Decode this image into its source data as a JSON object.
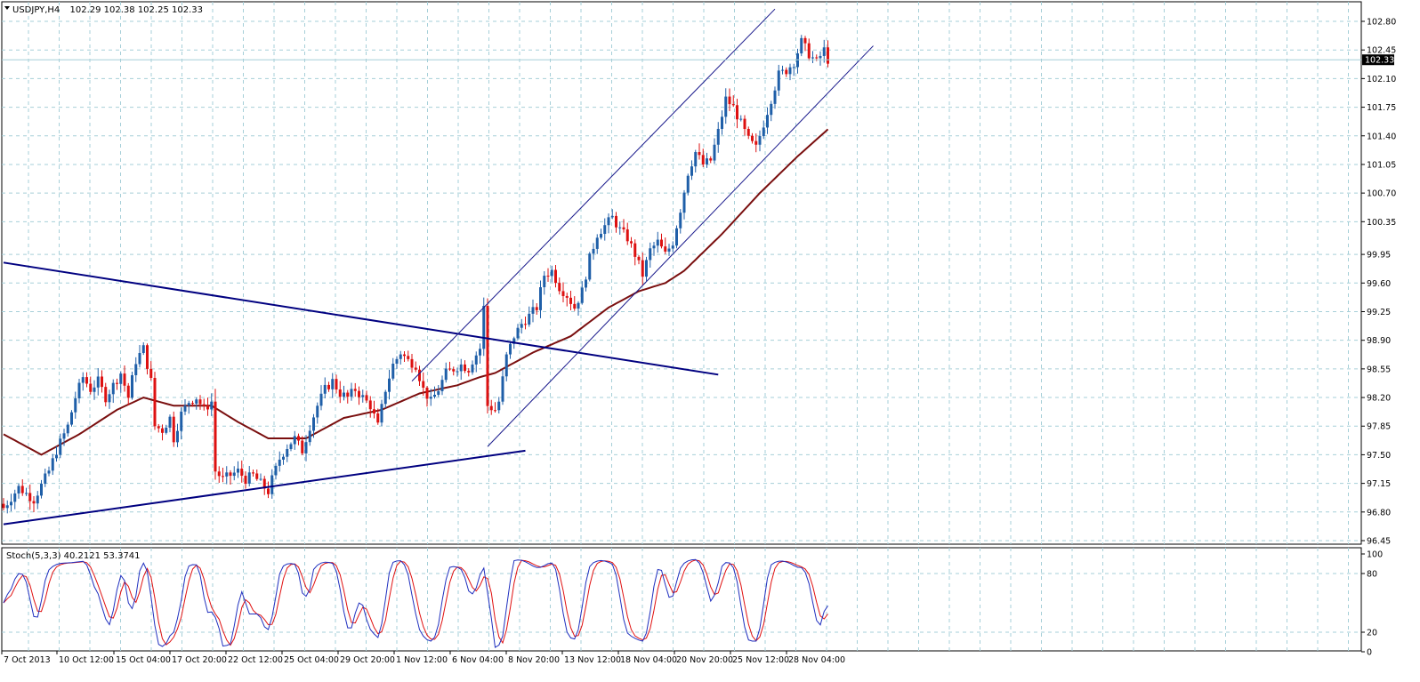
{
  "header": {
    "symbol": "USDJPY,H4",
    "ohlc": "102.29 102.38 102.25 102.33"
  },
  "colors": {
    "bull": "#1f5fa8",
    "bear": "#dd1111",
    "ma": "#7a0f0f",
    "trendline": "#000080",
    "channel": "#1a1a8c",
    "grid": "#a6cfd8",
    "stoch_main": "#1f2fbf",
    "stoch_signal": "#e01010",
    "price_marker_bg": "#000000"
  },
  "chart_data": [
    {
      "type": "candlestick",
      "title": "USDJPY,H4",
      "x_tick_labels": [
        "7 Oct 2013",
        "10 Oct 12:00",
        "15 Oct 04:00",
        "17 Oct 20:00",
        "22 Oct 12:00",
        "25 Oct 04:00",
        "29 Oct 20:00",
        "1 Nov 12:00",
        "6 Nov 04:00",
        "8 Nov 20:00",
        "13 Nov 12:00",
        "18 Nov 04:00",
        "20 Nov 20:00",
        "25 Nov 12:00",
        "28 Nov 04:00"
      ],
      "y_tick_labels": [
        "102.80",
        "102.45",
        "102.10",
        "101.75",
        "101.40",
        "101.05",
        "100.70",
        "100.35",
        "99.95",
        "99.60",
        "99.25",
        "98.90",
        "98.55",
        "98.20",
        "97.85",
        "97.50",
        "97.15",
        "96.80",
        "96.45"
      ],
      "ylim": [
        96.4,
        102.95
      ],
      "last_price": "102.33",
      "last_price_value": 102.33,
      "grid": true,
      "path": [
        [
          0,
          96.85
        ],
        [
          4,
          97.1
        ],
        [
          8,
          96.95
        ],
        [
          12,
          97.3
        ],
        [
          14,
          97.55
        ],
        [
          17,
          97.85
        ],
        [
          19,
          98.2
        ],
        [
          21,
          98.45
        ],
        [
          23,
          98.3
        ],
        [
          25,
          98.4
        ],
        [
          27,
          98.2
        ],
        [
          29,
          98.35
        ],
        [
          31,
          98.5
        ],
        [
          33,
          98.2
        ],
        [
          35,
          98.65
        ],
        [
          37,
          98.8
        ],
        [
          39,
          98.4
        ],
        [
          40,
          97.85
        ],
        [
          42,
          97.8
        ],
        [
          44,
          97.95
        ],
        [
          45,
          97.7
        ],
        [
          47,
          98.0
        ],
        [
          49,
          98.15
        ],
        [
          51,
          98.2
        ],
        [
          53,
          98.05
        ],
        [
          55,
          98.15
        ],
        [
          56,
          97.3
        ],
        [
          58,
          97.2
        ],
        [
          60,
          97.25
        ],
        [
          62,
          97.3
        ],
        [
          64,
          97.2
        ],
        [
          66,
          97.25
        ],
        [
          68,
          97.15
        ],
        [
          70,
          97.05
        ],
        [
          71,
          97.2
        ],
        [
          73,
          97.45
        ],
        [
          75,
          97.6
        ],
        [
          77,
          97.7
        ],
        [
          79,
          97.55
        ],
        [
          81,
          97.85
        ],
        [
          83,
          98.1
        ],
        [
          85,
          98.3
        ],
        [
          87,
          98.4
        ],
        [
          89,
          98.25
        ],
        [
          91,
          98.2
        ],
        [
          93,
          98.3
        ],
        [
          95,
          98.2
        ],
        [
          97,
          98.1
        ],
        [
          99,
          97.85
        ],
        [
          101,
          98.3
        ],
        [
          103,
          98.6
        ],
        [
          105,
          98.75
        ],
        [
          107,
          98.65
        ],
        [
          109,
          98.6
        ],
        [
          111,
          98.3
        ],
        [
          113,
          98.15
        ],
        [
          115,
          98.3
        ],
        [
          117,
          98.5
        ],
        [
          119,
          98.55
        ],
        [
          121,
          98.6
        ],
        [
          123,
          98.55
        ],
        [
          124,
          98.65
        ],
        [
          126,
          98.8
        ],
        [
          127,
          99.3
        ],
        [
          128,
          98.1
        ],
        [
          130,
          98.05
        ],
        [
          131,
          98.15
        ],
        [
          133,
          98.7
        ],
        [
          135,
          98.95
        ],
        [
          137,
          99.1
        ],
        [
          139,
          99.2
        ],
        [
          141,
          99.3
        ],
        [
          143,
          99.7
        ],
        [
          145,
          99.75
        ],
        [
          147,
          99.55
        ],
        [
          149,
          99.45
        ],
        [
          151,
          99.3
        ],
        [
          153,
          99.5
        ],
        [
          155,
          99.9
        ],
        [
          157,
          100.2
        ],
        [
          159,
          100.3
        ],
        [
          161,
          100.4
        ],
        [
          163,
          100.25
        ],
        [
          165,
          100.15
        ],
        [
          167,
          99.95
        ],
        [
          169,
          99.7
        ],
        [
          171,
          100.0
        ],
        [
          173,
          100.1
        ],
        [
          175,
          99.95
        ],
        [
          177,
          100.1
        ],
        [
          179,
          100.5
        ],
        [
          181,
          100.95
        ],
        [
          183,
          101.2
        ],
        [
          185,
          101.05
        ],
        [
          187,
          101.1
        ],
        [
          189,
          101.45
        ],
        [
          191,
          101.85
        ],
        [
          193,
          101.75
        ],
        [
          195,
          101.55
        ],
        [
          197,
          101.35
        ],
        [
          199,
          101.25
        ],
        [
          201,
          101.55
        ],
        [
          203,
          101.85
        ],
        [
          205,
          102.15
        ],
        [
          207,
          102.2
        ],
        [
          209,
          102.3
        ],
        [
          211,
          102.55
        ],
        [
          213,
          102.4
        ],
        [
          215,
          102.3
        ],
        [
          217,
          102.45
        ],
        [
          218,
          102.33
        ]
      ],
      "moving_average": {
        "path": [
          [
            0,
            97.75
          ],
          [
            10,
            97.5
          ],
          [
            20,
            97.75
          ],
          [
            30,
            98.05
          ],
          [
            37,
            98.2
          ],
          [
            45,
            98.1
          ],
          [
            55,
            98.1
          ],
          [
            62,
            97.9
          ],
          [
            70,
            97.7
          ],
          [
            80,
            97.7
          ],
          [
            90,
            97.95
          ],
          [
            100,
            98.05
          ],
          [
            110,
            98.25
          ],
          [
            120,
            98.35
          ],
          [
            126,
            98.45
          ],
          [
            130,
            98.5
          ],
          [
            140,
            98.75
          ],
          [
            150,
            98.95
          ],
          [
            160,
            99.3
          ],
          [
            168,
            99.5
          ],
          [
            175,
            99.6
          ],
          [
            180,
            99.75
          ],
          [
            190,
            100.2
          ],
          [
            200,
            100.7
          ],
          [
            210,
            101.15
          ],
          [
            218,
            101.48
          ]
        ]
      },
      "trendlines": [
        {
          "name": "descending-resistance",
          "from": [
            0,
            99.85
          ],
          "to": [
            189,
            98.48
          ]
        },
        {
          "name": "ascending-support",
          "from": [
            0,
            96.65
          ],
          "to": [
            138,
            97.55
          ]
        }
      ],
      "channel": {
        "upper": {
          "from": [
            108,
            98.4
          ],
          "to": [
            204,
            102.95
          ]
        },
        "lower": {
          "from": [
            128,
            97.6
          ],
          "to": [
            230,
            102.5
          ]
        }
      }
    },
    {
      "type": "line",
      "title": "Stoch(5,3,3) 40.2121 53.3741",
      "y_tick_labels": [
        "100",
        "80",
        "20",
        "0"
      ],
      "ylim": [
        0,
        100
      ],
      "levels": [
        80,
        20
      ],
      "grid": true,
      "series": [
        {
          "name": "main",
          "values": []
        },
        {
          "name": "signal",
          "values": []
        }
      ]
    }
  ]
}
